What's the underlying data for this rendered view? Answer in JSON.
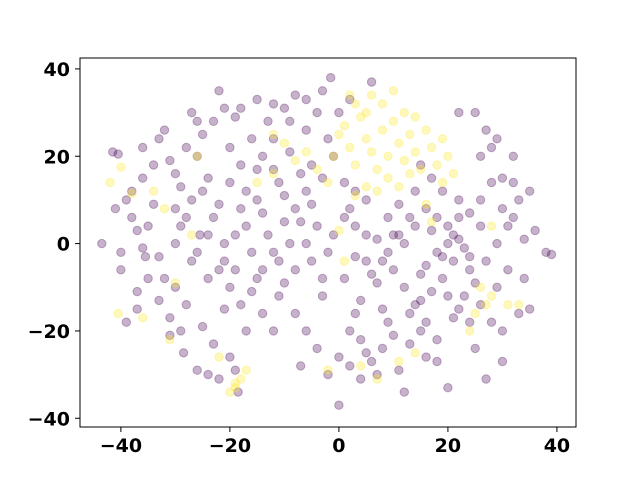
{
  "chart_data": {
    "type": "scatter",
    "title": "",
    "xlabel": "",
    "ylabel": "",
    "xlim": [
      -47.5,
      43.5
    ],
    "ylim": [
      -42.0,
      42.5
    ],
    "xticks": [
      -40,
      -20,
      0,
      20,
      40
    ],
    "yticks": [
      -40,
      -20,
      0,
      20,
      40
    ],
    "xtick_labels": [
      "−40",
      "−20",
      "0",
      "20",
      "40"
    ],
    "ytick_labels": [
      "−40",
      "−20",
      "0",
      "20",
      "40"
    ],
    "grid": false,
    "legend": null,
    "point_alpha": 0.3,
    "colors": {
      "purple": "#440154",
      "yellow": "#fde725"
    },
    "series": [
      {
        "color": "#440154",
        "points": [
          [
            -43.5,
            0
          ],
          [
            -41.5,
            21
          ],
          [
            -40.5,
            20.5
          ],
          [
            -40,
            -6
          ],
          [
            -39,
            -18
          ],
          [
            -37,
            3
          ],
          [
            -36,
            15
          ],
          [
            -35.5,
            -3
          ],
          [
            -34,
            18
          ],
          [
            -32,
            26
          ],
          [
            -31,
            -21
          ],
          [
            -30,
            8
          ],
          [
            -28.5,
            -25
          ],
          [
            -27,
            30
          ],
          [
            -25.5,
            2
          ],
          [
            -24,
            -30
          ],
          [
            -22,
            35
          ],
          [
            -21,
            -15
          ],
          [
            -20,
            22
          ],
          [
            -18.5,
            -34
          ],
          [
            -17,
            12
          ],
          [
            -15,
            -8
          ],
          [
            -13,
            28
          ],
          [
            -12,
            -20
          ],
          [
            -10,
            5
          ],
          [
            -8,
            34
          ],
          [
            -7,
            -28
          ],
          [
            -5,
            18
          ],
          [
            -3,
            -12
          ],
          [
            -1.5,
            38
          ],
          [
            0,
            -37
          ],
          [
            2,
            8
          ],
          [
            4,
            -22
          ],
          [
            6,
            37
          ],
          [
            8,
            -15
          ],
          [
            10,
            2
          ],
          [
            12,
            -34
          ],
          [
            14,
            12
          ],
          [
            16,
            -5
          ],
          [
            18,
            -2
          ],
          [
            19,
            -3
          ],
          [
            20,
            0
          ],
          [
            21,
            -4
          ],
          [
            22,
            1
          ],
          [
            23,
            -1
          ],
          [
            17,
            3
          ],
          [
            15,
            -7
          ],
          [
            24,
            -6
          ],
          [
            26,
            10
          ],
          [
            28,
            22
          ],
          [
            30,
            15
          ],
          [
            32,
            6
          ],
          [
            34,
            -8
          ],
          [
            36,
            3
          ],
          [
            38,
            -2
          ],
          [
            39,
            -2.5
          ],
          [
            35,
            -15
          ],
          [
            33,
            -16
          ],
          [
            30,
            -27
          ],
          [
            27,
            -31
          ],
          [
            25,
            -24
          ],
          [
            20,
            -33
          ],
          [
            16,
            -26
          ],
          [
            11,
            -29
          ],
          [
            -26,
            20
          ],
          [
            -24,
            15
          ],
          [
            -22,
            9
          ],
          [
            -19,
            2
          ],
          [
            -16,
            -2
          ],
          [
            -14,
            7
          ],
          [
            -11,
            14
          ],
          [
            -9,
            21
          ],
          [
            -6,
            26
          ],
          [
            -4,
            30
          ],
          [
            -2,
            24
          ],
          [
            1,
            14
          ],
          [
            3,
            4
          ],
          [
            5,
            -4
          ],
          [
            7,
            -9
          ],
          [
            9,
            -18
          ],
          [
            -30,
            -10
          ],
          [
            -28,
            -14
          ],
          [
            -25,
            -19
          ],
          [
            -23,
            -23
          ],
          [
            -20,
            -26
          ],
          [
            -17,
            -20
          ],
          [
            -14,
            -16
          ],
          [
            -11,
            -12
          ],
          [
            -8,
            -6
          ],
          [
            -6,
            0
          ],
          [
            -4,
            4
          ],
          [
            -2,
            -2
          ],
          [
            1,
            -8
          ],
          [
            3,
            -16
          ],
          [
            5,
            -25
          ],
          [
            7,
            -30
          ],
          [
            -38,
            6
          ],
          [
            -36,
            -1
          ],
          [
            -34,
            9
          ],
          [
            -32,
            -8
          ],
          [
            -29,
            4
          ],
          [
            -27,
            -4
          ],
          [
            -24,
            -8
          ],
          [
            -21,
            -4
          ],
          [
            -18,
            8
          ],
          [
            -15,
            17
          ],
          [
            -12,
            24
          ],
          [
            -10,
            31
          ],
          [
            -7,
            16
          ],
          [
            -5,
            9
          ],
          [
            -3,
            15
          ],
          [
            -1,
            20
          ],
          [
            12,
            -10
          ],
          [
            14,
            -14
          ],
          [
            16,
            -18
          ],
          [
            18,
            -22
          ],
          [
            21,
            -17
          ],
          [
            23,
            -12
          ],
          [
            25,
            -9
          ],
          [
            27,
            -4
          ],
          [
            29,
            0
          ],
          [
            31,
            4
          ],
          [
            26,
            4
          ],
          [
            24,
            7
          ],
          [
            22,
            10
          ],
          [
            19,
            12
          ],
          [
            17,
            15
          ],
          [
            15,
            18
          ],
          [
            -33,
            24
          ],
          [
            -31,
            19
          ],
          [
            -29,
            13
          ],
          [
            -27,
            10
          ],
          [
            -25,
            25
          ],
          [
            -23,
            28
          ],
          [
            -21,
            31
          ],
          [
            -19,
            29
          ],
          [
            -37,
            -11
          ],
          [
            -35,
            -8
          ],
          [
            -33,
            -13
          ],
          [
            -31,
            -17
          ],
          [
            -29,
            -20
          ],
          [
            -26,
            -29
          ],
          [
            -22,
            -31
          ],
          [
            -19,
            -29
          ],
          [
            2,
            -28
          ],
          [
            4,
            -31
          ],
          [
            6,
            -27
          ],
          [
            8,
            -24
          ],
          [
            10,
            -21
          ],
          [
            13,
            -23
          ],
          [
            15,
            -20
          ],
          [
            18,
            -27
          ],
          [
            0,
            30
          ],
          [
            2,
            33
          ],
          [
            -3,
            35
          ],
          [
            -6,
            33
          ],
          [
            -9,
            28
          ],
          [
            -12,
            32
          ],
          [
            -15,
            33
          ],
          [
            -18,
            31
          ],
          [
            9,
            6
          ],
          [
            11,
            9
          ],
          [
            13,
            6
          ],
          [
            11,
            2
          ],
          [
            9,
            -2
          ],
          [
            7,
            1
          ],
          [
            5,
            10
          ],
          [
            3,
            12
          ],
          [
            28,
            -18
          ],
          [
            30,
            -20
          ],
          [
            29,
            -10
          ],
          [
            31,
            -6
          ],
          [
            33,
            10
          ],
          [
            35,
            12
          ],
          [
            32,
            20
          ],
          [
            34,
            1
          ],
          [
            -40,
            -2
          ],
          [
            -38,
            12
          ],
          [
            -36,
            22
          ],
          [
            -39,
            10
          ],
          [
            -41,
            8
          ],
          [
            -37,
            -15
          ],
          [
            -35,
            4
          ],
          [
            -33,
            -3
          ],
          [
            -20,
            14
          ],
          [
            -18,
            18
          ],
          [
            -16,
            24
          ],
          [
            -14,
            20
          ],
          [
            -12,
            17
          ],
          [
            -10,
            11
          ],
          [
            -8,
            8
          ],
          [
            -6,
            12
          ],
          [
            -20,
            -10
          ],
          [
            -18,
            -14
          ],
          [
            -16,
            -11
          ],
          [
            -14,
            -6
          ],
          [
            -12,
            -2
          ],
          [
            -10,
            -9
          ],
          [
            -8,
            -16
          ],
          [
            -6,
            -20
          ],
          [
            -4,
            -24
          ],
          [
            -2,
            -30
          ],
          [
            0,
            -26
          ],
          [
            2,
            -20
          ],
          [
            4,
            -13
          ],
          [
            6,
            -7
          ],
          [
            8,
            -4
          ],
          [
            10,
            -6
          ],
          [
            20,
            4
          ],
          [
            22,
            6
          ],
          [
            24,
            -3
          ],
          [
            21,
            2
          ],
          [
            18,
            6
          ],
          [
            16,
            8
          ],
          [
            14,
            4
          ],
          [
            12,
            0
          ],
          [
            19,
            -8
          ],
          [
            17,
            -11
          ],
          [
            15,
            -13
          ],
          [
            13,
            -16
          ],
          [
            20,
            -12
          ],
          [
            22,
            -15
          ],
          [
            24,
            -18
          ],
          [
            26,
            -14
          ],
          [
            -25,
            12
          ],
          [
            -23,
            6
          ],
          [
            -21,
            0
          ],
          [
            -19,
            -6
          ],
          [
            -17,
            4
          ],
          [
            -15,
            10
          ],
          [
            -13,
            2
          ],
          [
            -11,
            -4
          ],
          [
            -9,
            0
          ],
          [
            -7,
            5
          ],
          [
            -5,
            -4
          ],
          [
            -3,
            -8
          ],
          [
            -1,
            2
          ],
          [
            1,
            6
          ],
          [
            3,
            -3
          ],
          [
            5,
            2
          ],
          [
            -30,
            0
          ],
          [
            -28,
            6
          ],
          [
            -26,
            -2
          ],
          [
            -24,
            2
          ],
          [
            -22,
            -6
          ],
          [
            -30,
            16
          ],
          [
            -28,
            22
          ],
          [
            -26,
            28
          ],
          [
            26,
            20
          ],
          [
            28,
            14
          ],
          [
            30,
            8
          ],
          [
            32,
            14
          ],
          [
            27,
            26
          ],
          [
            25,
            30
          ],
          [
            22,
            30
          ],
          [
            29,
            24
          ]
        ]
      },
      {
        "color": "#fde725",
        "points": [
          [
            -40,
            17.5
          ],
          [
            -42,
            14
          ],
          [
            -40.5,
            -16
          ],
          [
            -38,
            11.5
          ],
          [
            -36,
            -17
          ],
          [
            -31,
            -22
          ],
          [
            -22,
            -26
          ],
          [
            -20,
            -34
          ],
          [
            -19,
            -33
          ],
          [
            -18,
            -31
          ],
          [
            -17,
            -29
          ],
          [
            -19,
            -32
          ],
          [
            -26,
            20
          ],
          [
            -15,
            14
          ],
          [
            -2,
            14
          ],
          [
            -1,
            20
          ],
          [
            0,
            25
          ],
          [
            1,
            27
          ],
          [
            2,
            22
          ],
          [
            3,
            18
          ],
          [
            4,
            29
          ],
          [
            5,
            24
          ],
          [
            6,
            21
          ],
          [
            7,
            17
          ],
          [
            8,
            26
          ],
          [
            9,
            20
          ],
          [
            10,
            28
          ],
          [
            11,
            23
          ],
          [
            12,
            19
          ],
          [
            13,
            25
          ],
          [
            14,
            21
          ],
          [
            15,
            17
          ],
          [
            16,
            26
          ],
          [
            17,
            22
          ],
          [
            18,
            18
          ],
          [
            19,
            24
          ],
          [
            20,
            20
          ],
          [
            3,
            32
          ],
          [
            5,
            30
          ],
          [
            8,
            32
          ],
          [
            10,
            35
          ],
          [
            2,
            34
          ],
          [
            6,
            34
          ],
          [
            12,
            30
          ],
          [
            14,
            29
          ],
          [
            9,
            15
          ],
          [
            11,
            13
          ],
          [
            13,
            16
          ],
          [
            7,
            12
          ],
          [
            5,
            13
          ],
          [
            3,
            11
          ],
          [
            -4,
            17
          ],
          [
            -6,
            21
          ],
          [
            -8,
            19
          ],
          [
            -10,
            23
          ],
          [
            -12,
            25
          ],
          [
            -12,
            16
          ],
          [
            26,
            -10
          ],
          [
            27,
            -14
          ],
          [
            28,
            -12
          ],
          [
            25,
            -16
          ],
          [
            24,
            -20
          ],
          [
            -34,
            12
          ],
          [
            -32,
            8
          ],
          [
            4,
            -28
          ],
          [
            7,
            -31
          ],
          [
            11,
            -27
          ],
          [
            14,
            -25
          ],
          [
            16,
            9
          ],
          [
            17,
            5
          ],
          [
            21,
            16
          ],
          [
            19,
            14
          ],
          [
            -2,
            -29
          ],
          [
            -30,
            -9
          ],
          [
            -27,
            2
          ],
          [
            0,
            3
          ],
          [
            1,
            -4
          ],
          [
            33,
            -14
          ],
          [
            31,
            -14
          ],
          [
            28,
            4
          ]
        ]
      }
    ]
  }
}
